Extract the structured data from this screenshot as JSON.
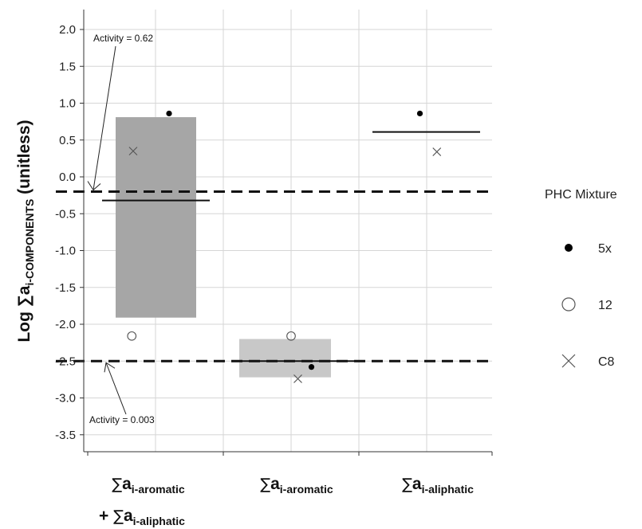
{
  "chart_data": {
    "type": "box-scatter",
    "ylabel": {
      "prefix": "Log ",
      "sum_symbol": "∑",
      "main": "a",
      "sub": "i-COMPONENTS",
      "suffix": " (unitless)"
    },
    "ylim": [
      -3.75,
      2.2
    ],
    "yticks": [
      "2.0",
      "1.5",
      "1.0",
      "0.5",
      "0.0",
      "-0.5",
      "-1.0",
      "-1.5",
      "-2.0",
      "-2.5",
      "-3.0",
      "-3.5"
    ],
    "grid": true,
    "categories": [
      {
        "lines": [
          {
            "plus": "",
            "sum": "∑",
            "main": "a",
            "sub": "i-aromatic"
          },
          {
            "plus": "+ ",
            "sum": "∑",
            "main": "a",
            "sub": "i-aliphatic"
          }
        ]
      },
      {
        "lines": [
          {
            "plus": "",
            "sum": "∑",
            "main": "a",
            "sub": "i-aromatic"
          }
        ]
      },
      {
        "lines": [
          {
            "plus": "",
            "sum": "∑",
            "main": "a",
            "sub": "i-aliphatic"
          }
        ]
      }
    ],
    "boxes": [
      {
        "category": 0,
        "low": -1.91,
        "high": 0.81,
        "median": -0.32,
        "color": "#a6a6a6"
      },
      {
        "category": 1,
        "low": -2.72,
        "high": -2.2,
        "median": -2.5,
        "color": "#c8c8c8"
      },
      {
        "category": 2,
        "low": null,
        "high": null,
        "median": 0.61,
        "color": "#ffffff"
      }
    ],
    "series": [
      {
        "name": "5x",
        "marker": "filled-circle",
        "points": [
          {
            "category": 0,
            "offset": 0.2,
            "y": 0.86
          },
          {
            "category": 1,
            "offset": 0.3,
            "y": -2.58
          },
          {
            "category": 2,
            "offset": -0.1,
            "y": 0.86
          }
        ]
      },
      {
        "name": "12",
        "marker": "open-circle",
        "points": [
          {
            "category": 0,
            "offset": -0.35,
            "y": -2.16
          },
          {
            "category": 1,
            "offset": 0.0,
            "y": -2.16
          }
        ]
      },
      {
        "name": "C8",
        "marker": "cross",
        "points": [
          {
            "category": 0,
            "offset": -0.33,
            "y": 0.35
          },
          {
            "category": 1,
            "offset": 0.1,
            "y": -2.74
          },
          {
            "category": 2,
            "offset": 0.15,
            "y": 0.34
          }
        ]
      }
    ],
    "reference_lines": [
      {
        "y": -0.2,
        "style": "dashed",
        "label": "Activity = 0.62"
      },
      {
        "y": -2.5,
        "style": "dashed",
        "label": "Activity = 0.003"
      }
    ],
    "legend": {
      "title": "PHC Mixture",
      "placement": "right"
    }
  }
}
